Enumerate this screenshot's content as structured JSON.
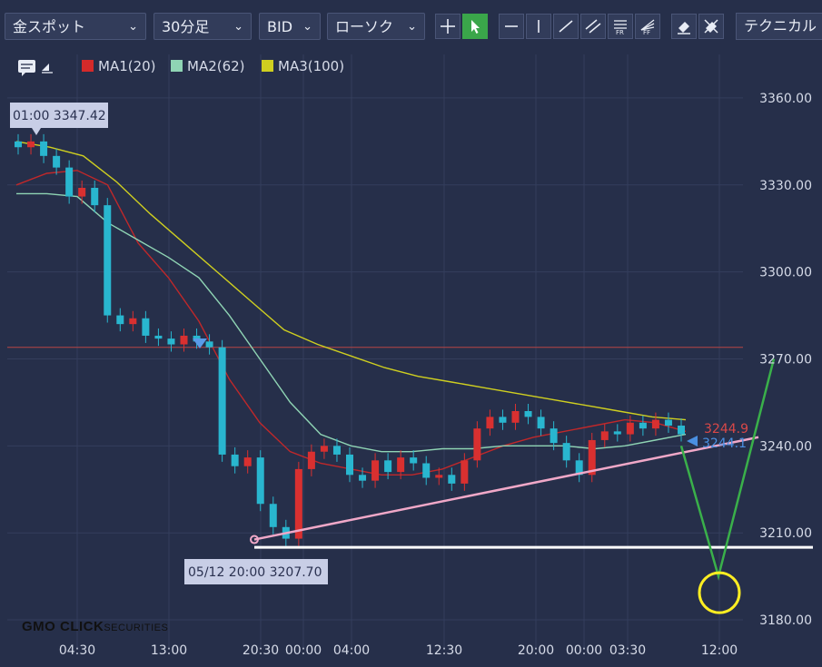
{
  "toolbar": {
    "symbol": "金スポット",
    "timeframe": "30分足",
    "price_type": "BID",
    "chart_style": "ローソク",
    "technical": "テクニカル"
  },
  "legend": [
    {
      "label": "MA1(20)",
      "color": "#d42a2a"
    },
    {
      "label": "MA2(62)",
      "color": "#8fd4b4"
    },
    {
      "label": "MA3(100)",
      "color": "#cfcf20"
    }
  ],
  "chart_data": {
    "type": "candlestick",
    "title": "",
    "ylim": [
      3170,
      3375
    ],
    "y_ticks": [
      "3360.00",
      "3330.00",
      "3300.00",
      "3270.00",
      "3240.00",
      "3210.00",
      "3180.00"
    ],
    "x_ticks": [
      "04:30",
      "13:00",
      "20:30",
      "00:00",
      "04:00",
      "12:30",
      "20:00",
      "00:00",
      "03:30",
      "12:00"
    ],
    "grid": true,
    "high_annotation": {
      "label": "01:00 3347.42",
      "value": 3347.42
    },
    "low_annotation": {
      "label": "05/12 20:00 3207.70",
      "value": 3207.7
    },
    "price_tags": [
      {
        "label": "3244.9",
        "color": "#d94848"
      },
      {
        "label": "3244.1",
        "color": "#4a90e2"
      }
    ],
    "reference_line": 3274,
    "candles_approx_close": [
      3343,
      3345,
      3340,
      3336,
      3326,
      3329,
      3323,
      3285,
      3282,
      3284,
      3278,
      3277,
      3275,
      3278,
      3276,
      3274,
      3237,
      3233,
      3236,
      3220,
      3212,
      3208,
      3232,
      3238,
      3240,
      3237,
      3230,
      3228,
      3235,
      3231,
      3236,
      3234,
      3229,
      3230,
      3227,
      3235,
      3246,
      3250,
      3248,
      3252,
      3250,
      3246,
      3241,
      3235,
      3230,
      3242,
      3245,
      3244,
      3248,
      3246,
      3249,
      3247,
      3244
    ],
    "ma_series": [
      {
        "values": [
          3330,
          3334,
          3335,
          3330,
          3310,
          3298,
          3283,
          3263,
          3248,
          3238,
          3234,
          3232,
          3230,
          3230,
          3232,
          3236,
          3240,
          3243,
          3245,
          3247,
          3249,
          3248,
          3245
        ]
      },
      {
        "values": [
          3327,
          3327,
          3326,
          3317,
          3311,
          3305,
          3298,
          3285,
          3270,
          3255,
          3244,
          3240,
          3238,
          3238,
          3239,
          3239,
          3240,
          3240,
          3240,
          3239,
          3240,
          3242,
          3244
        ]
      },
      {
        "values": [
          3345,
          3343,
          3340,
          3331,
          3320,
          3310,
          3300,
          3290,
          3280,
          3275,
          3271,
          3267,
          3264,
          3262,
          3260,
          3258,
          3256,
          3254,
          3252,
          3250,
          3249
        ]
      }
    ],
    "annotations": {
      "trendline": [
        3207.7,
        3243
      ],
      "support_line": 3205,
      "projection": [
        3240,
        3195,
        3270
      ]
    }
  }
}
